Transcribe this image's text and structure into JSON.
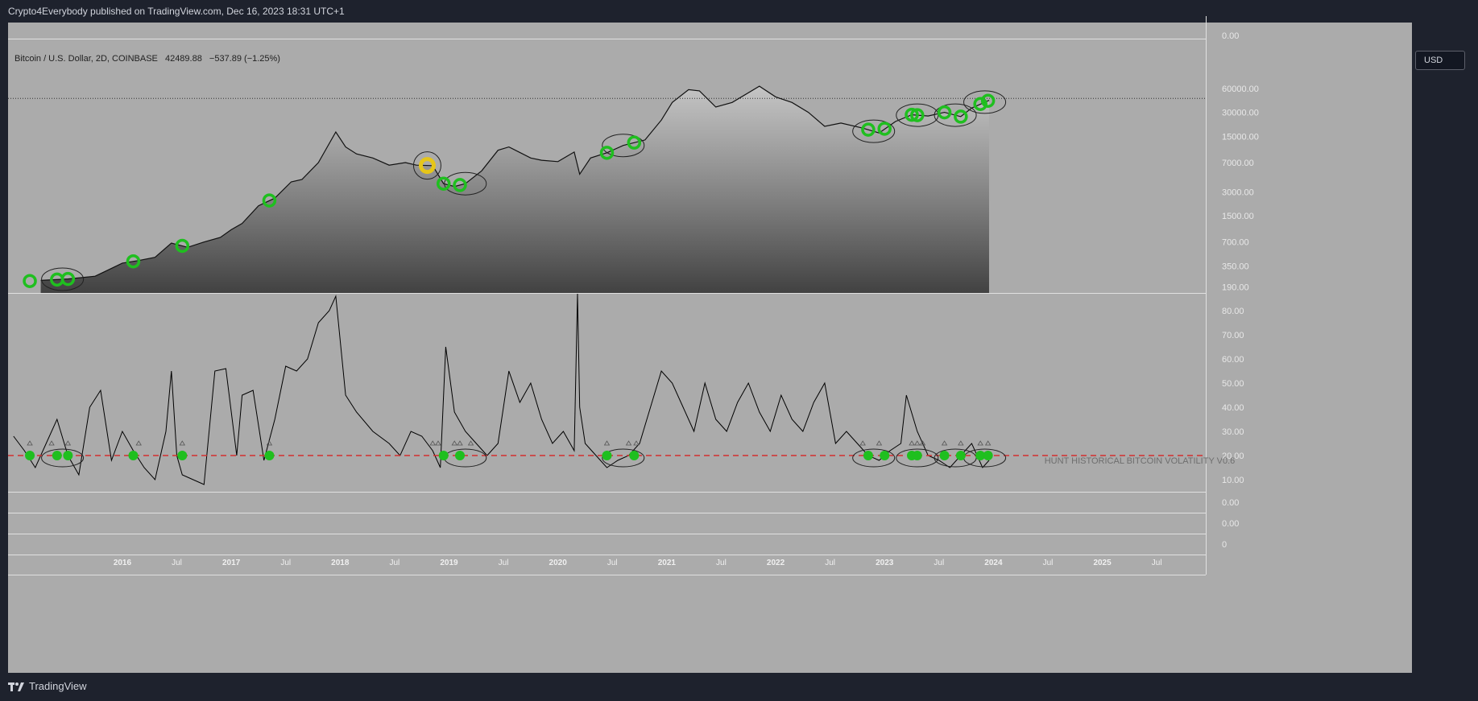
{
  "header": {
    "publisher": "Crypto4Everybody published on TradingView.com, Dec 16, 2023 18:31 UTC+1"
  },
  "footer": {
    "brand": "TradingView"
  },
  "chart_data": [
    {
      "type": "line",
      "scale": "log",
      "title": "Bitcoin / U.S. Dollar, 2D, COINBASE",
      "last_price": "42489.88",
      "change": "−537.89 (−1.25%)",
      "currency": "USD",
      "y_ticks": [
        "0.00",
        "60000.00",
        "30000.00",
        "15000.00",
        "7000.00",
        "3000.00",
        "1500.00",
        "700.00",
        "350.00",
        "190.00"
      ],
      "ylim": [
        160,
        100000
      ],
      "reference_line": 45000,
      "series": [
        {
          "x": [
            2015.25,
            2015.5,
            2015.75,
            2016.0,
            2016.15,
            2016.3,
            2016.45,
            2016.6,
            2016.75,
            2016.9,
            2017.0,
            2017.1,
            2017.25,
            2017.4,
            2017.55,
            2017.65,
            2017.8,
            2017.96,
            2018.05,
            2018.15,
            2018.3,
            2018.45,
            2018.6,
            2018.7,
            2018.85,
            2018.95,
            2019.05,
            2019.15,
            2019.3,
            2019.45,
            2019.55,
            2019.75,
            2019.85,
            2020.0,
            2020.15,
            2020.2,
            2020.3,
            2020.45,
            2020.6,
            2020.8,
            2020.95,
            2021.05,
            2021.2,
            2021.3,
            2021.45,
            2021.6,
            2021.85,
            2022.0,
            2022.15,
            2022.3,
            2022.45,
            2022.6,
            2022.8,
            2022.95,
            2023.1,
            2023.25,
            2023.4,
            2023.55,
            2023.7,
            2023.8,
            2023.96
          ],
          "values": [
            230,
            240,
            260,
            380,
            410,
            450,
            680,
            600,
            700,
            800,
            1000,
            1200,
            2000,
            2500,
            4000,
            4300,
            7000,
            17000,
            11000,
            9000,
            8000,
            6500,
            7000,
            6500,
            6400,
            3800,
            3500,
            3800,
            5500,
            10000,
            11000,
            8000,
            7500,
            7200,
            9500,
            5000,
            8000,
            9300,
            11500,
            13500,
            24000,
            40000,
            58000,
            56000,
            35000,
            40000,
            64000,
            47000,
            40000,
            30000,
            20000,
            22000,
            19000,
            16500,
            23000,
            28000,
            27000,
            30000,
            26500,
            34000,
            42490
          ]
        }
      ]
    },
    {
      "type": "line",
      "title": "HUNT HISTORICAL BITCOIN VOLATILITY V0.6",
      "y_ticks": [
        "80.00",
        "70.00",
        "60.00",
        "50.00",
        "40.00",
        "30.00",
        "20.00",
        "10.00"
      ],
      "ylim": [
        5,
        87
      ],
      "threshold": 20,
      "series": [
        {
          "x": [
            2015.0,
            2015.1,
            2015.2,
            2015.3,
            2015.4,
            2015.5,
            2015.6,
            2015.7,
            2015.8,
            2015.9,
            2016.0,
            2016.1,
            2016.2,
            2016.3,
            2016.4,
            2016.45,
            2016.5,
            2016.55,
            2016.65,
            2016.75,
            2016.85,
            2016.95,
            2017.05,
            2017.1,
            2017.2,
            2017.3,
            2017.4,
            2017.5,
            2017.6,
            2017.7,
            2017.8,
            2017.9,
            2017.96,
            2018.05,
            2018.15,
            2018.3,
            2018.45,
            2018.55,
            2018.65,
            2018.75,
            2018.85,
            2018.92,
            2018.97,
            2019.05,
            2019.15,
            2019.25,
            2019.35,
            2019.45,
            2019.55,
            2019.65,
            2019.75,
            2019.85,
            2019.95,
            2020.05,
            2020.15,
            2020.18,
            2020.2,
            2020.25,
            2020.35,
            2020.45,
            2020.55,
            2020.65,
            2020.75,
            2020.85,
            2020.95,
            2021.05,
            2021.15,
            2021.25,
            2021.35,
            2021.45,
            2021.55,
            2021.65,
            2021.75,
            2021.85,
            2021.95,
            2022.05,
            2022.15,
            2022.25,
            2022.35,
            2022.45,
            2022.55,
            2022.65,
            2022.75,
            2022.85,
            2022.95,
            2023.05,
            2023.15,
            2023.2,
            2023.3,
            2023.4,
            2023.5,
            2023.6,
            2023.7,
            2023.8,
            2023.9,
            2023.96
          ],
          "values": [
            28,
            22,
            15,
            25,
            35,
            20,
            12,
            40,
            47,
            18,
            30,
            22,
            15,
            10,
            30,
            55,
            20,
            12,
            10,
            8,
            55,
            56,
            20,
            45,
            47,
            18,
            35,
            57,
            55,
            60,
            75,
            80,
            86,
            45,
            38,
            30,
            25,
            20,
            30,
            28,
            22,
            15,
            65,
            38,
            30,
            25,
            20,
            25,
            55,
            42,
            50,
            35,
            25,
            30,
            22,
            88,
            40,
            25,
            20,
            15,
            18,
            20,
            25,
            40,
            55,
            50,
            40,
            30,
            50,
            35,
            30,
            42,
            50,
            38,
            30,
            45,
            35,
            30,
            42,
            50,
            25,
            30,
            25,
            20,
            18,
            22,
            25,
            45,
            30,
            20,
            18,
            15,
            20,
            25,
            15,
            18
          ]
        }
      ]
    }
  ],
  "axis": {
    "extra_ticks": [
      "0.00",
      "0.00",
      "0"
    ],
    "x_labels": [
      {
        "t": 2016.0,
        "label": "2016"
      },
      {
        "t": 2016.5,
        "label": "Jul"
      },
      {
        "t": 2017.0,
        "label": "2017"
      },
      {
        "t": 2017.5,
        "label": "Jul"
      },
      {
        "t": 2018.0,
        "label": "2018"
      },
      {
        "t": 2018.5,
        "label": "Jul"
      },
      {
        "t": 2019.0,
        "label": "2019"
      },
      {
        "t": 2019.5,
        "label": "Jul"
      },
      {
        "t": 2020.0,
        "label": "2020"
      },
      {
        "t": 2020.5,
        "label": "Jul"
      },
      {
        "t": 2021.0,
        "label": "2021"
      },
      {
        "t": 2021.5,
        "label": "Jul"
      },
      {
        "t": 2022.0,
        "label": "2022"
      },
      {
        "t": 2022.5,
        "label": "Jul"
      },
      {
        "t": 2023.0,
        "label": "2023"
      },
      {
        "t": 2023.5,
        "label": "Jul"
      },
      {
        "t": 2024.0,
        "label": "2024"
      },
      {
        "t": 2024.5,
        "label": "Jul"
      },
      {
        "t": 2025.0,
        "label": "2025"
      },
      {
        "t": 2025.5,
        "label": "Jul"
      }
    ]
  },
  "markers": {
    "green_circles": [
      2015.15,
      2015.4,
      2015.5,
      2016.1,
      2016.55,
      2017.35,
      2018.95,
      2019.1,
      2020.45,
      2020.7,
      2022.85,
      2023.0,
      2023.25,
      2023.3,
      2023.55,
      2023.7,
      2023.88,
      2023.95
    ],
    "yellow_circle": 2018.8,
    "triangles": [
      2015.15,
      2015.35,
      2015.5,
      2016.15,
      2016.55,
      2017.35,
      2018.85,
      2018.9,
      2019.05,
      2019.1,
      2019.2,
      2020.45,
      2020.65,
      2020.72,
      2022.8,
      2022.95,
      2023.25,
      2023.3,
      2023.35,
      2023.55,
      2023.7,
      2023.88,
      2023.95
    ],
    "ovals": [
      2015.45,
      2019.15,
      2020.6,
      2022.9,
      2023.3,
      2023.65,
      2023.92
    ]
  },
  "colors": {
    "price_line": "#111111",
    "volatility_line": "#000000",
    "threshold_line": "#d32f2f",
    "marker_green": "#1fbf1f",
    "marker_yellow": "#e6c619",
    "panel_bg": "#ababab",
    "frame_bg": "#1e222d",
    "axis_text": "#e8e8e8"
  }
}
